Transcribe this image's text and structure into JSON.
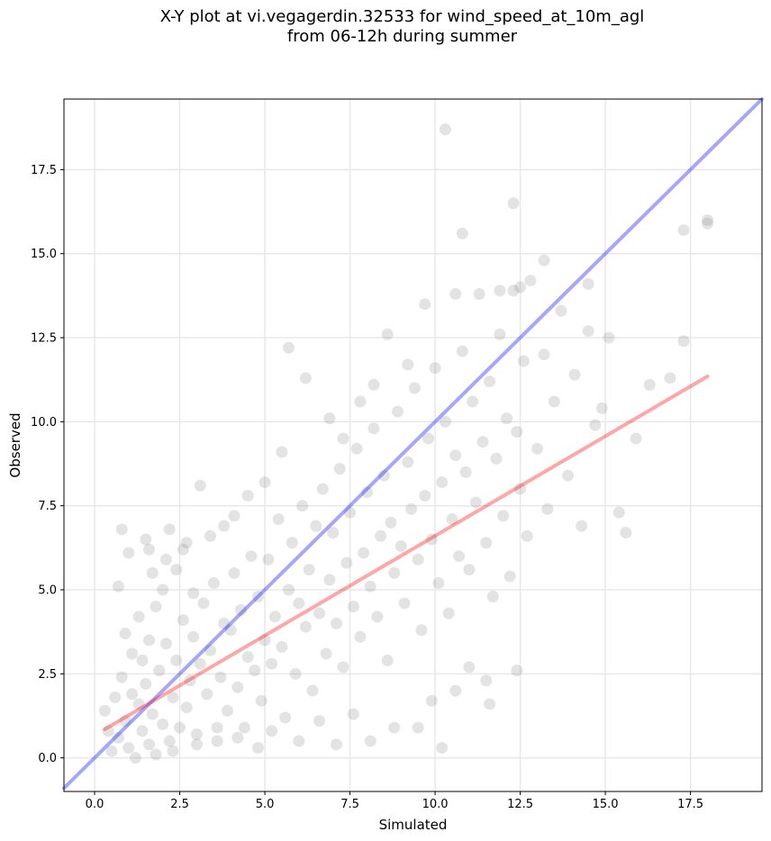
{
  "chart_data": {
    "type": "scatter",
    "title": "X-Y plot at vi.vegagerdin.32533 for wind_speed_at_10m_agl",
    "subtitle": "from 06-12h during summer",
    "xlabel": "Simulated",
    "ylabel": "Observed",
    "xlim": [
      -0.9,
      19.6
    ],
    "ylim": [
      -1.0,
      19.6
    ],
    "xticks": [
      0.0,
      2.5,
      5.0,
      7.5,
      10.0,
      12.5,
      15.0,
      17.5
    ],
    "yticks": [
      0.0,
      2.5,
      5.0,
      7.5,
      10.0,
      12.5,
      15.0,
      17.5
    ],
    "xtick_labels": [
      "0.0",
      "2.5",
      "5.0",
      "7.5",
      "10.0",
      "12.5",
      "15.0",
      "17.5"
    ],
    "ytick_labels": [
      "0.0",
      "2.5",
      "5.0",
      "7.5",
      "10.0",
      "12.5",
      "15.0",
      "17.5"
    ],
    "grid": true,
    "points": [
      [
        0.5,
        0.2
      ],
      [
        0.7,
        0.6
      ],
      [
        0.9,
        1.1
      ],
      [
        1.0,
        0.3
      ],
      [
        1.2,
        0.0
      ],
      [
        1.3,
        1.6
      ],
      [
        1.4,
        0.8
      ],
      [
        1.5,
        2.2
      ],
      [
        1.6,
        0.4
      ],
      [
        1.7,
        1.3
      ],
      [
        1.8,
        0.1
      ],
      [
        1.9,
        2.6
      ],
      [
        2.0,
        1.0
      ],
      [
        2.1,
        3.4
      ],
      [
        2.2,
        0.5
      ],
      [
        2.3,
        1.8
      ],
      [
        2.4,
        2.9
      ],
      [
        2.5,
        0.9
      ],
      [
        2.6,
        4.1
      ],
      [
        2.7,
        1.5
      ],
      [
        2.8,
        2.3
      ],
      [
        2.9,
        3.6
      ],
      [
        3.0,
        0.7
      ],
      [
        3.1,
        2.8
      ],
      [
        3.2,
        4.6
      ],
      [
        3.3,
        1.9
      ],
      [
        3.4,
        3.2
      ],
      [
        3.5,
        5.2
      ],
      [
        3.6,
        0.5
      ],
      [
        3.7,
        2.4
      ],
      [
        3.8,
        4.0
      ],
      [
        3.9,
        1.4
      ],
      [
        4.0,
        3.8
      ],
      [
        4.1,
        5.5
      ],
      [
        4.2,
        2.1
      ],
      [
        4.3,
        4.4
      ],
      [
        4.4,
        0.9
      ],
      [
        4.5,
        3.0
      ],
      [
        4.6,
        6.0
      ],
      [
        4.7,
        2.6
      ],
      [
        4.8,
        4.8
      ],
      [
        4.9,
        1.7
      ],
      [
        5.0,
        3.5
      ],
      [
        5.1,
        5.9
      ],
      [
        5.2,
        2.8
      ],
      [
        5.3,
        4.2
      ],
      [
        5.4,
        7.1
      ],
      [
        5.5,
        3.3
      ],
      [
        5.6,
        1.2
      ],
      [
        5.7,
        5.0
      ],
      [
        5.8,
        6.4
      ],
      [
        5.9,
        2.5
      ],
      [
        6.0,
        4.6
      ],
      [
        6.1,
        7.5
      ],
      [
        6.2,
        3.9
      ],
      [
        6.3,
        5.6
      ],
      [
        6.4,
        2.0
      ],
      [
        6.5,
        6.9
      ],
      [
        6.6,
        4.3
      ],
      [
        6.7,
        8.0
      ],
      [
        6.8,
        3.1
      ],
      [
        6.9,
        5.3
      ],
      [
        7.0,
        6.7
      ],
      [
        7.1,
        4.0
      ],
      [
        7.2,
        8.6
      ],
      [
        7.3,
        2.7
      ],
      [
        7.4,
        5.8
      ],
      [
        7.5,
        7.3
      ],
      [
        7.6,
        4.5
      ],
      [
        7.7,
        9.2
      ],
      [
        7.8,
        3.6
      ],
      [
        7.9,
        6.1
      ],
      [
        8.0,
        7.9
      ],
      [
        8.1,
        5.1
      ],
      [
        8.2,
        9.8
      ],
      [
        8.3,
        4.2
      ],
      [
        8.4,
        6.6
      ],
      [
        8.5,
        8.4
      ],
      [
        8.6,
        2.9
      ],
      [
        8.7,
        7.0
      ],
      [
        8.8,
        5.5
      ],
      [
        8.9,
        10.3
      ],
      [
        9.0,
        6.3
      ],
      [
        9.1,
        4.6
      ],
      [
        9.2,
        8.8
      ],
      [
        9.3,
        7.4
      ],
      [
        9.4,
        11.0
      ],
      [
        9.5,
        5.9
      ],
      [
        9.6,
        3.8
      ],
      [
        9.7,
        7.8
      ],
      [
        9.8,
        9.5
      ],
      [
        9.9,
        6.5
      ],
      [
        10.0,
        11.6
      ],
      [
        10.1,
        5.2
      ],
      [
        10.2,
        8.2
      ],
      [
        10.3,
        10.0
      ],
      [
        10.4,
        4.3
      ],
      [
        10.5,
        7.1
      ],
      [
        10.6,
        9.0
      ],
      [
        10.7,
        6.0
      ],
      [
        10.8,
        12.1
      ],
      [
        10.9,
        8.5
      ],
      [
        11.0,
        5.6
      ],
      [
        11.1,
        10.6
      ],
      [
        11.2,
        7.6
      ],
      [
        11.3,
        13.8
      ],
      [
        11.4,
        9.4
      ],
      [
        11.5,
        6.4
      ],
      [
        11.6,
        11.2
      ],
      [
        11.7,
        4.8
      ],
      [
        11.8,
        8.9
      ],
      [
        11.9,
        12.6
      ],
      [
        12.0,
        7.2
      ],
      [
        12.1,
        10.1
      ],
      [
        12.2,
        5.4
      ],
      [
        12.3,
        13.9
      ],
      [
        12.4,
        9.7
      ],
      [
        12.5,
        8.0
      ],
      [
        12.6,
        11.8
      ],
      [
        12.7,
        6.6
      ],
      [
        12.8,
        14.2
      ],
      [
        13.0,
        9.2
      ],
      [
        13.2,
        12.0
      ],
      [
        13.3,
        7.4
      ],
      [
        13.5,
        10.6
      ],
      [
        13.7,
        13.3
      ],
      [
        13.9,
        8.4
      ],
      [
        14.1,
        11.4
      ],
      [
        14.3,
        6.9
      ],
      [
        14.5,
        12.7
      ],
      [
        14.7,
        9.9
      ],
      [
        14.9,
        10.4
      ],
      [
        15.1,
        12.5
      ],
      [
        15.4,
        7.3
      ],
      [
        15.6,
        6.7
      ],
      [
        15.9,
        9.5
      ],
      [
        16.3,
        11.1
      ],
      [
        16.9,
        11.3
      ],
      [
        17.3,
        12.4
      ],
      [
        17.3,
        15.7
      ],
      [
        18.0,
        15.9
      ],
      [
        18.0,
        16.0
      ],
      [
        10.3,
        18.7
      ],
      [
        12.3,
        16.5
      ],
      [
        10.8,
        15.6
      ],
      [
        12.5,
        14.0
      ],
      [
        11.9,
        13.9
      ],
      [
        14.5,
        14.1
      ],
      [
        13.2,
        14.8
      ],
      [
        10.6,
        13.8
      ],
      [
        0.3,
        1.4
      ],
      [
        0.4,
        0.8
      ],
      [
        0.6,
        1.8
      ],
      [
        0.8,
        2.4
      ],
      [
        1.1,
        1.9
      ],
      [
        1.1,
        3.1
      ],
      [
        1.4,
        2.9
      ],
      [
        1.6,
        3.5
      ],
      [
        1.8,
        4.5
      ],
      [
        2.0,
        5.0
      ],
      [
        2.2,
        6.8
      ],
      [
        2.4,
        5.6
      ],
      [
        2.6,
        6.2
      ],
      [
        2.9,
        4.9
      ],
      [
        3.1,
        8.1
      ],
      [
        3.4,
        6.6
      ],
      [
        3.8,
        6.9
      ],
      [
        4.1,
        7.2
      ],
      [
        4.5,
        7.8
      ],
      [
        5.0,
        8.2
      ],
      [
        5.5,
        9.1
      ],
      [
        5.7,
        12.2
      ],
      [
        6.2,
        11.3
      ],
      [
        6.9,
        10.1
      ],
      [
        7.3,
        9.5
      ],
      [
        7.8,
        10.6
      ],
      [
        8.2,
        11.1
      ],
      [
        8.6,
        12.6
      ],
      [
        9.2,
        11.7
      ],
      [
        9.7,
        13.5
      ],
      [
        2.3,
        0.2
      ],
      [
        3.0,
        0.4
      ],
      [
        3.6,
        0.9
      ],
      [
        4.2,
        0.6
      ],
      [
        4.8,
        0.3
      ],
      [
        5.2,
        0.8
      ],
      [
        6.0,
        0.5
      ],
      [
        6.6,
        1.1
      ],
      [
        7.1,
        0.4
      ],
      [
        7.6,
        1.3
      ],
      [
        8.1,
        0.5
      ],
      [
        8.8,
        0.9
      ],
      [
        9.5,
        0.9
      ],
      [
        10.2,
        0.3
      ],
      [
        9.9,
        1.7
      ],
      [
        10.6,
        2.0
      ],
      [
        11.0,
        2.7
      ],
      [
        11.6,
        1.6
      ],
      [
        12.4,
        2.6
      ],
      [
        11.5,
        2.3
      ],
      [
        1.0,
        6.1
      ],
      [
        1.6,
        6.2
      ],
      [
        0.7,
        5.1
      ],
      [
        1.3,
        4.2
      ],
      [
        0.9,
        3.7
      ],
      [
        1.7,
        5.5
      ],
      [
        2.1,
        5.9
      ],
      [
        1.5,
        6.5
      ],
      [
        0.8,
        6.8
      ],
      [
        2.7,
        6.4
      ]
    ],
    "identity_line": {
      "color": "#0000ff",
      "x": [
        -0.9,
        19.6
      ],
      "y": [
        -0.9,
        19.6
      ]
    },
    "fit_line": {
      "color": "#ff0000",
      "x": [
        0.3,
        18.0
      ],
      "y": [
        0.85,
        11.35
      ]
    },
    "marker_color": "#808080"
  }
}
